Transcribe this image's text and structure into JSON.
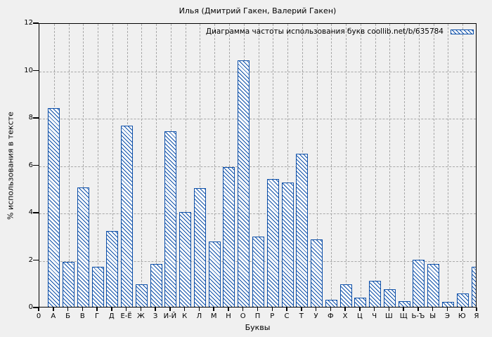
{
  "figure": {
    "title": "Илья (Дмитрий Гакен, Валерий Гакен)",
    "legend_label": "Диаграмма частоты использования букв coollib.net/b/635784",
    "xlabel": "Буквы",
    "ylabel": "% использования в тексте"
  },
  "colors": {
    "background": "#f0f0f0",
    "bar_outline": "#0d4fa8",
    "bar_fill": "#ffffff",
    "grid": "#a8a8a8",
    "axis": "#000000"
  },
  "chart_data": {
    "type": "bar",
    "title": "Илья (Дмитрий Гакен, Валерий Гакен)",
    "legend": [
      "Диаграмма частоты использования букв coollib.net/b/635784"
    ],
    "legend_position": "top-right",
    "xlabel": "Буквы",
    "ylabel": "% использования в тексте",
    "ylim": [
      0,
      12
    ],
    "y_ticks": [
      0,
      2,
      4,
      6,
      8,
      10,
      12
    ],
    "x_axis_origin_tick": "0",
    "grid": true,
    "bar_style": "diagonal-hatch",
    "categories": [
      "А",
      "Б",
      "В",
      "Г",
      "Д",
      "Е-Ё",
      "Ж",
      "З",
      "И-Й",
      "К",
      "Л",
      "М",
      "Н",
      "О",
      "П",
      "Р",
      "С",
      "Т",
      "У",
      "Ф",
      "Х",
      "Ц",
      "Ч",
      "Ш",
      "Щ",
      "Ь-Ъ",
      "Ы",
      "Э",
      "Ю",
      "Я"
    ],
    "values": [
      8.4,
      1.9,
      5.05,
      1.7,
      3.2,
      7.65,
      0.95,
      1.8,
      7.4,
      4.0,
      5.0,
      2.75,
      5.9,
      10.4,
      2.95,
      5.4,
      5.25,
      6.45,
      2.85,
      0.3,
      0.95,
      0.4,
      1.1,
      0.75,
      0.25,
      2.0,
      1.8,
      0.2,
      0.55,
      1.7
    ]
  }
}
